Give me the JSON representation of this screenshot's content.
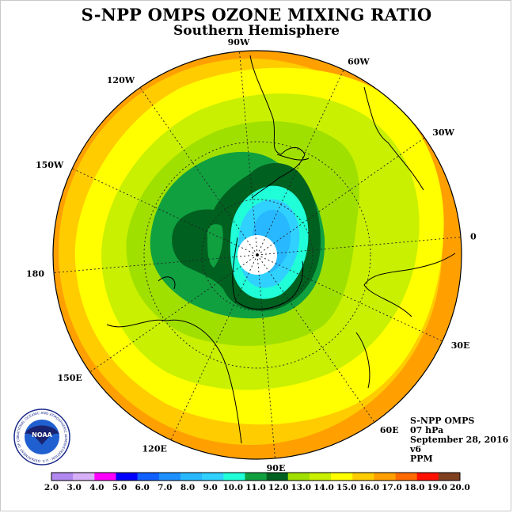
{
  "header": {
    "title": "S-NPP OMPS OZONE MIXING RATIO",
    "subtitle": "Southern Hemisphere"
  },
  "map": {
    "projection": "south-polar-stereographic",
    "longitude_labels": [
      {
        "text": "90W",
        "angle": 95
      },
      {
        "text": "60W",
        "angle": 65
      },
      {
        "text": "30W",
        "angle": 35
      },
      {
        "text": "0",
        "angle": 5
      },
      {
        "text": "30E",
        "angle": -25
      },
      {
        "text": "60E",
        "angle": -55
      },
      {
        "text": "90E",
        "angle": -85
      },
      {
        "text": "120E",
        "angle": -115
      },
      {
        "text": "150E",
        "angle": -145
      },
      {
        "text": "180",
        "angle": -175
      },
      {
        "text": "150W",
        "angle": 155
      },
      {
        "text": "120W",
        "angle": 125
      }
    ],
    "field_levels_ppm": [
      16.0,
      15.0,
      14.0,
      13.0,
      12.0,
      11.0,
      10.0,
      9.0,
      8.0
    ]
  },
  "info": {
    "instrument": "S-NPP OMPS",
    "level": "07 hPa",
    "date": "September 28, 2016",
    "version": "v6",
    "units": "PPM"
  },
  "logo": {
    "text": "NOAA",
    "ring_text": "NATIONAL OCEANIC AND ATMOSPHERIC ADMINISTRATION · U.S. DEPARTMENT OF COMMERCE"
  },
  "colorbar": {
    "labels": [
      "2.0",
      "3.0",
      "4.0",
      "5.0",
      "6.0",
      "7.0",
      "8.0",
      "9.0",
      "10.0",
      "11.0",
      "12.0",
      "13.0",
      "14.0",
      "15.0",
      "16.0",
      "17.0",
      "18.0",
      "19.0",
      "20.0"
    ],
    "colors": [
      "#b088f0",
      "#d8b0f8",
      "#ff00ff",
      "#0000ff",
      "#1060ff",
      "#1c90ff",
      "#28b8ff",
      "#30d0ff",
      "#20ffd8",
      "#10a040",
      "#006020",
      "#a0e000",
      "#c8f000",
      "#ffff00",
      "#ffcc00",
      "#ffa000",
      "#ff6a00",
      "#ff1000",
      "#804020"
    ]
  }
}
